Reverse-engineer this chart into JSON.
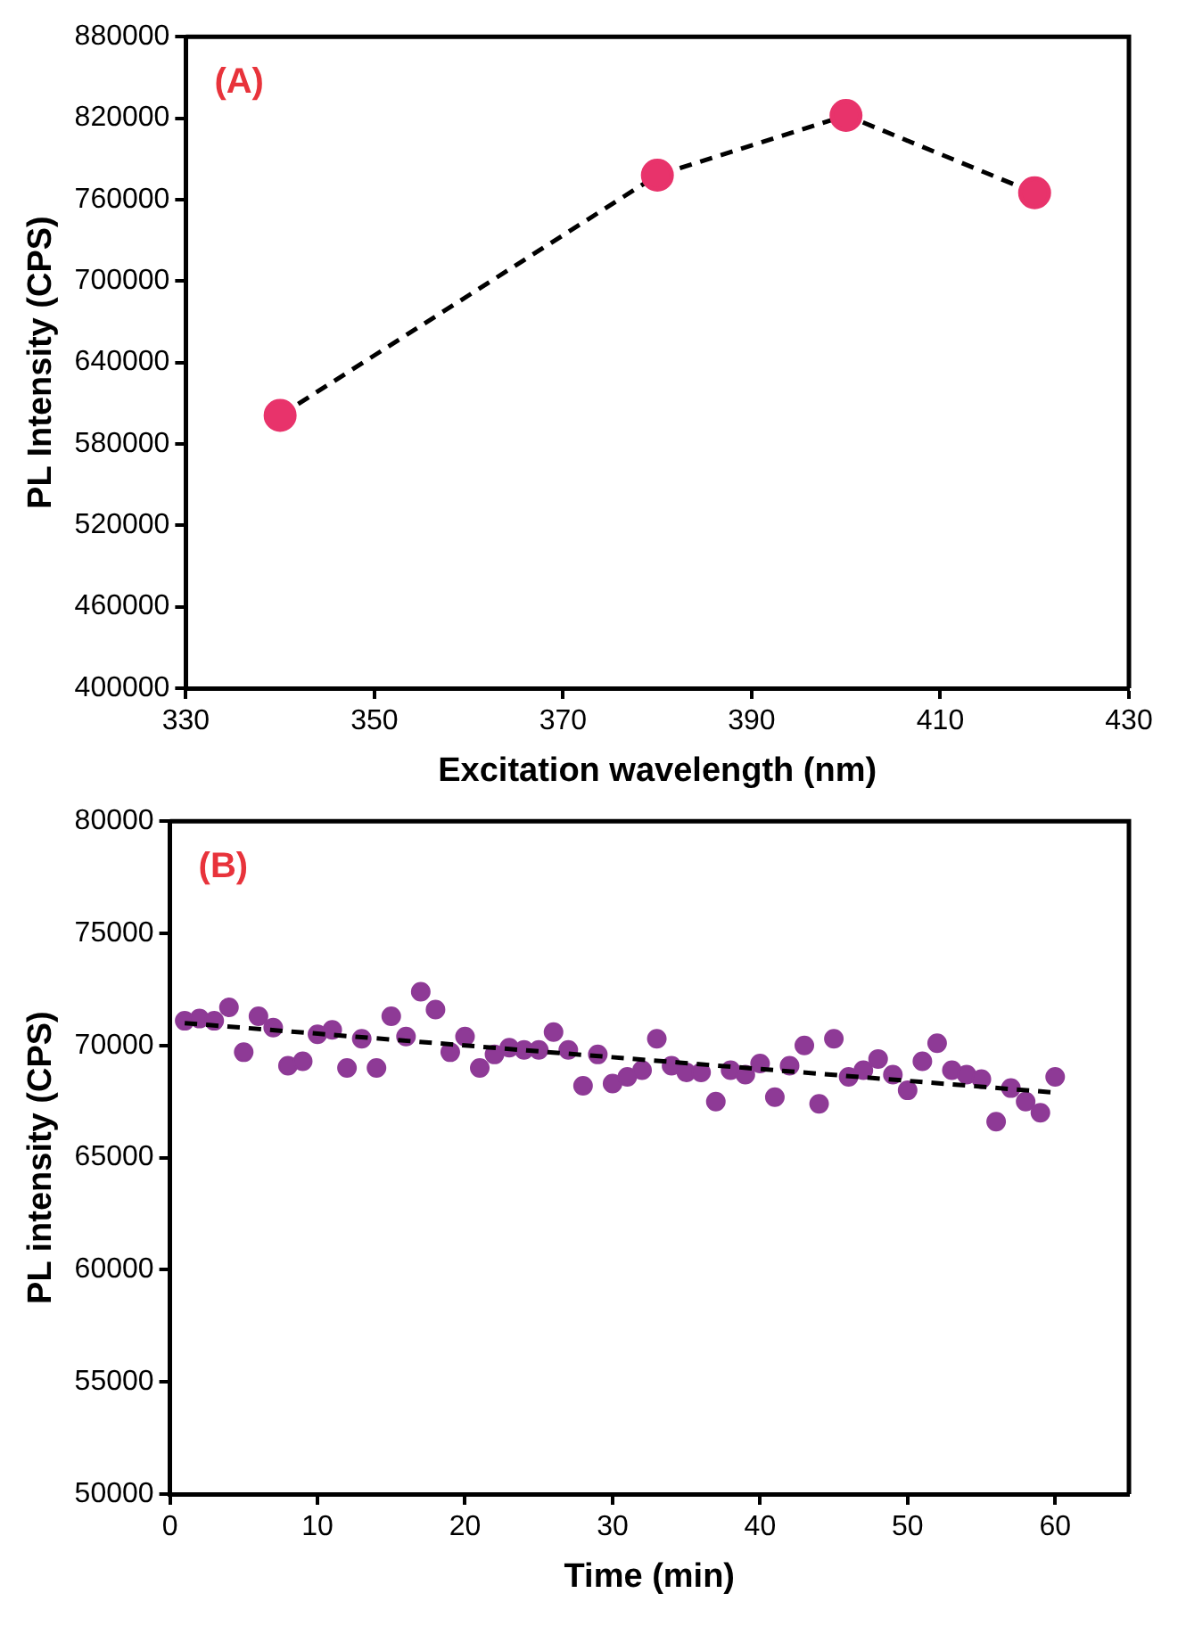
{
  "chart_data": [
    {
      "type": "line",
      "xlabel": "Excitation wavelength (nm)",
      "ylabel": "PL Intensity (CPS)",
      "annotations": [
        "(A)"
      ],
      "x": [
        340,
        380,
        400,
        420
      ],
      "series": [
        {
          "color": "#e8336b",
          "values": [
            601000,
            778000,
            822000,
            765000
          ],
          "marker": "circle",
          "line_style": "dashed"
        }
      ],
      "xlim": [
        330,
        430
      ],
      "xticks": [
        330,
        350,
        370,
        390,
        410,
        430
      ],
      "ylim": [
        400000,
        880000
      ],
      "yticks": [
        400000,
        460000,
        520000,
        580000,
        640000,
        700000,
        760000,
        820000,
        880000
      ],
      "grid": false,
      "legend": false
    },
    {
      "type": "scatter",
      "xlabel": "Time (min)",
      "ylabel": "PL intensity (CPS)",
      "annotations": [
        "(B)"
      ],
      "x": [
        1,
        2,
        3,
        4,
        5,
        6,
        7,
        8,
        9,
        10,
        11,
        12,
        13,
        14,
        15,
        16,
        17,
        18,
        19,
        20,
        21,
        22,
        23,
        24,
        25,
        26,
        27,
        28,
        29,
        30,
        31,
        32,
        33,
        34,
        35,
        36,
        37,
        38,
        39,
        40,
        41,
        42,
        43,
        44,
        45,
        46,
        47,
        48,
        49,
        50,
        51,
        52,
        53,
        54,
        55,
        56,
        57,
        58,
        59,
        60
      ],
      "series": [
        {
          "color": "#8e3a96",
          "marker": "circle",
          "values": [
            71100,
            71200,
            71100,
            71700,
            69700,
            71300,
            70800,
            69100,
            69300,
            70500,
            70700,
            69000,
            70300,
            69000,
            71300,
            70400,
            72400,
            71600,
            69700,
            70400,
            69000,
            69600,
            69900,
            69800,
            69800,
            70600,
            69800,
            68200,
            69600,
            68300,
            68600,
            68900,
            70300,
            69100,
            68800,
            68800,
            67500,
            68900,
            68700,
            69200,
            67700,
            69100,
            70000,
            67400,
            70300,
            68600,
            68900,
            69400,
            68700,
            68000,
            69300,
            70100,
            68900,
            68700,
            68500,
            66600,
            68100,
            67500,
            67000,
            68600
          ]
        },
        {
          "type": "line",
          "color": "#000000",
          "x": [
            1,
            60
          ],
          "values": [
            71000,
            67900
          ],
          "marker": "none",
          "line_style": "dashed"
        }
      ],
      "xlim": [
        0,
        65
      ],
      "xticks": [
        0,
        10,
        20,
        30,
        40,
        50,
        60
      ],
      "ylim": [
        50000,
        80000
      ],
      "yticks": [
        50000,
        55000,
        60000,
        65000,
        70000,
        75000,
        80000
      ],
      "grid": false,
      "legend": false
    }
  ]
}
